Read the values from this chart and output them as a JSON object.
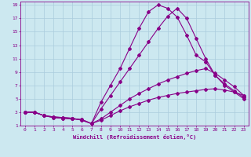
{
  "xlabel": "Windchill (Refroidissement éolien,°C)",
  "bg_color": "#cce8f0",
  "grid_color": "#aaccdd",
  "line_color": "#880088",
  "xlim": [
    -0.5,
    23.5
  ],
  "ylim": [
    1,
    19.5
  ],
  "xticks": [
    0,
    1,
    2,
    3,
    4,
    5,
    6,
    7,
    8,
    9,
    10,
    11,
    12,
    13,
    14,
    15,
    16,
    17,
    18,
    19,
    20,
    21,
    22,
    23
  ],
  "yticks": [
    1,
    3,
    5,
    7,
    9,
    11,
    13,
    15,
    17,
    19
  ],
  "curve_top_x": [
    0,
    1,
    2,
    3,
    4,
    5,
    6,
    7,
    8,
    9,
    10,
    11,
    12,
    13,
    14,
    15,
    16,
    17,
    18,
    19,
    20,
    21,
    22,
    23
  ],
  "curve_top_y": [
    3,
    3,
    2.5,
    2.3,
    2.2,
    2.1,
    1.8,
    1.3,
    4.5,
    7.0,
    9.5,
    12.5,
    15.5,
    18.0,
    19.0,
    18.5,
    17.2,
    14.5,
    11.5,
    10.5,
    8.5,
    7.2,
    6.2,
    5.2
  ],
  "curve_2nd_x": [
    0,
    1,
    2,
    3,
    4,
    5,
    6,
    7,
    8,
    9,
    10,
    11,
    12,
    13,
    14,
    15,
    16,
    17,
    18,
    19,
    20,
    21,
    22,
    23
  ],
  "curve_2nd_y": [
    3,
    3,
    2.5,
    2.3,
    2.2,
    2.1,
    1.8,
    1.3,
    3.5,
    5.5,
    7.5,
    9.5,
    11.5,
    13.5,
    15.5,
    17.3,
    18.5,
    17.0,
    14.0,
    11.0,
    8.5,
    7.0,
    6.0,
    5.0
  ],
  "curve_3rd_x": [
    0,
    1,
    2,
    3,
    4,
    5,
    6,
    7,
    8,
    9,
    10,
    11,
    12,
    13,
    14,
    15,
    16,
    17,
    18,
    19,
    20,
    21,
    22,
    23
  ],
  "curve_3rd_y": [
    3,
    3,
    2.5,
    2.2,
    2.1,
    2.0,
    1.9,
    1.3,
    2.0,
    3.0,
    4.0,
    5.0,
    5.8,
    6.5,
    7.2,
    7.8,
    8.3,
    8.8,
    9.2,
    9.5,
    8.8,
    7.8,
    6.8,
    5.5
  ],
  "curve_bot_x": [
    0,
    1,
    2,
    3,
    4,
    5,
    6,
    7,
    8,
    9,
    10,
    11,
    12,
    13,
    14,
    15,
    16,
    17,
    18,
    19,
    20,
    21,
    22,
    23
  ],
  "curve_bot_y": [
    3,
    3,
    2.5,
    2.2,
    2.1,
    2.0,
    1.9,
    1.3,
    1.8,
    2.5,
    3.2,
    3.8,
    4.3,
    4.8,
    5.2,
    5.5,
    5.8,
    6.0,
    6.2,
    6.4,
    6.5,
    6.3,
    6.0,
    5.5
  ]
}
